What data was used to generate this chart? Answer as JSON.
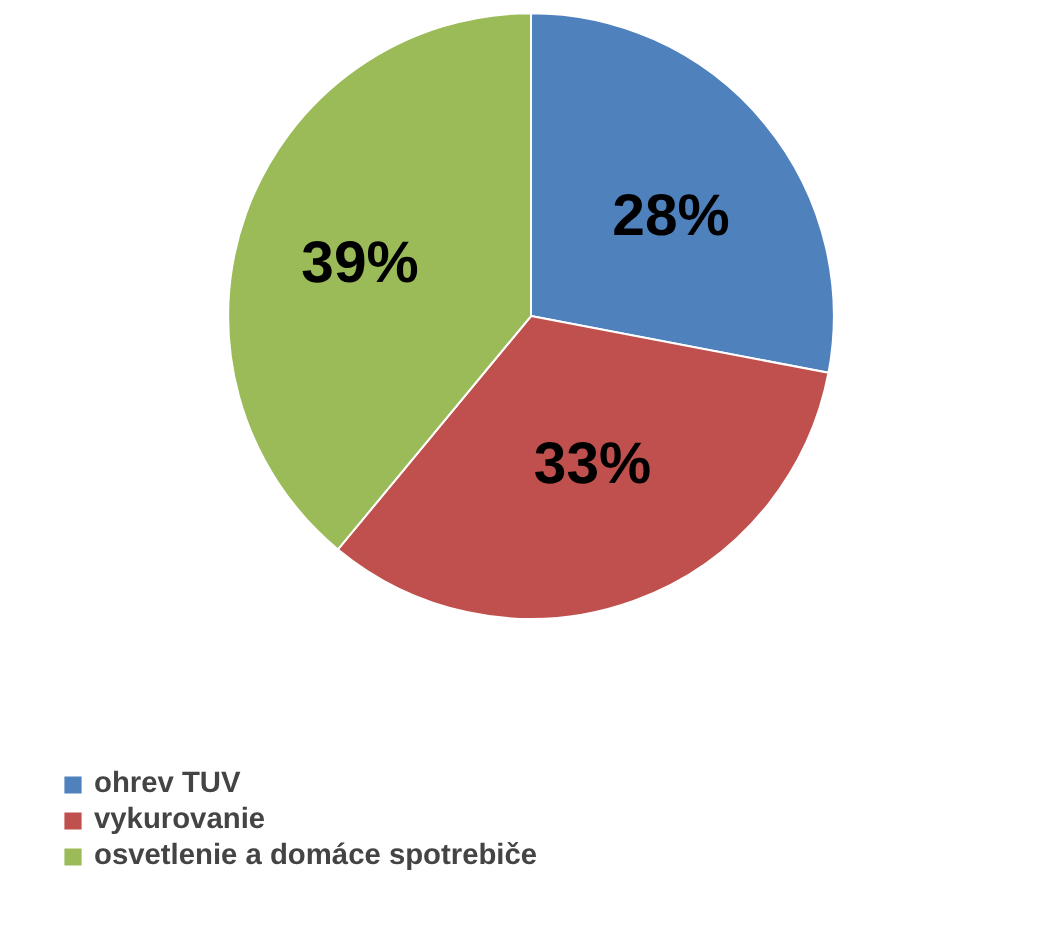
{
  "chart_data": {
    "type": "pie",
    "categories": [
      "ohrev TUV",
      "vykurovanie",
      "osvetlenie a domáce spotrebiče"
    ],
    "values": [
      28,
      33,
      39
    ],
    "value_labels": [
      "28%",
      "33%",
      "39%"
    ],
    "colors": [
      "#4f81bd",
      "#c0504d",
      "#9bbb59"
    ],
    "legend": "bottom"
  }
}
